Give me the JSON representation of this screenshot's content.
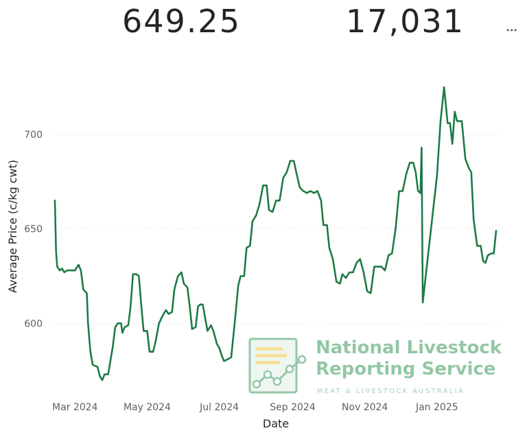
{
  "kpis": [
    {
      "value": "649.25"
    },
    {
      "value": "17,031"
    }
  ],
  "more_options_icon": "ellipsis-icon",
  "colors": {
    "line": "#1e7a45",
    "grid": "#d9d9d9",
    "text": "#605e5c",
    "watermark": "#3c9a5c"
  },
  "watermark": {
    "title_line1": "National Livestock",
    "title_line2": "Reporting Service",
    "subtitle": "MEAT & LIVESTOCK AUSTRALIA",
    "logo": "nlrs-logo"
  },
  "chart_data": {
    "type": "line",
    "xlabel": "Date",
    "ylabel": "Average Price (c/kg cwt)",
    "ylim": [
      566,
      733
    ],
    "yticks": [
      600,
      650,
      700
    ],
    "xticks": [
      {
        "label": "Mar 2024",
        "date": "2024-03-01"
      },
      {
        "label": "May 2024",
        "date": "2024-05-01"
      },
      {
        "label": "Jul 2024",
        "date": "2024-07-01"
      },
      {
        "label": "Sep 2024",
        "date": "2024-09-01"
      },
      {
        "label": "Nov 2024",
        "date": "2024-11-01"
      },
      {
        "label": "Jan 2025",
        "date": "2025-01-01"
      }
    ],
    "xrange": [
      "2024-02-13",
      "2025-02-20"
    ],
    "grid": true,
    "series": [
      {
        "points": [
          [
            "2024-02-13",
            665
          ],
          [
            "2024-02-14",
            638
          ],
          [
            "2024-02-15",
            630
          ],
          [
            "2024-02-17",
            628
          ],
          [
            "2024-02-19",
            629
          ],
          [
            "2024-02-21",
            627
          ],
          [
            "2024-02-23",
            628
          ],
          [
            "2024-02-26",
            628
          ],
          [
            "2024-02-28",
            628
          ],
          [
            "2024-03-01",
            628
          ],
          [
            "2024-03-04",
            631
          ],
          [
            "2024-03-06",
            628
          ],
          [
            "2024-03-08",
            618
          ],
          [
            "2024-03-11",
            616
          ],
          [
            "2024-03-12",
            600
          ],
          [
            "2024-03-14",
            585
          ],
          [
            "2024-03-16",
            578
          ],
          [
            "2024-03-20",
            577
          ],
          [
            "2024-03-22",
            572
          ],
          [
            "2024-03-24",
            570
          ],
          [
            "2024-03-26",
            573
          ],
          [
            "2024-03-29",
            573
          ],
          [
            "2024-04-02",
            588
          ],
          [
            "2024-04-04",
            598
          ],
          [
            "2024-04-06",
            600
          ],
          [
            "2024-04-09",
            600
          ],
          [
            "2024-04-10",
            595
          ],
          [
            "2024-04-12",
            598
          ],
          [
            "2024-04-15",
            599
          ],
          [
            "2024-04-17",
            609
          ],
          [
            "2024-04-19",
            626
          ],
          [
            "2024-04-22",
            626
          ],
          [
            "2024-04-24",
            625
          ],
          [
            "2024-04-26",
            610
          ],
          [
            "2024-04-28",
            596
          ],
          [
            "2024-05-01",
            596
          ],
          [
            "2024-05-03",
            585
          ],
          [
            "2024-05-06",
            585
          ],
          [
            "2024-05-08",
            590
          ],
          [
            "2024-05-11",
            600
          ],
          [
            "2024-05-14",
            604
          ],
          [
            "2024-05-17",
            607
          ],
          [
            "2024-05-19",
            605
          ],
          [
            "2024-05-22",
            606
          ],
          [
            "2024-05-24",
            618
          ],
          [
            "2024-05-27",
            625
          ],
          [
            "2024-05-30",
            627
          ],
          [
            "2024-06-01",
            621
          ],
          [
            "2024-06-04",
            619
          ],
          [
            "2024-06-06",
            609
          ],
          [
            "2024-06-08",
            597
          ],
          [
            "2024-06-11",
            598
          ],
          [
            "2024-06-13",
            609
          ],
          [
            "2024-06-15",
            610
          ],
          [
            "2024-06-17",
            610
          ],
          [
            "2024-06-19",
            603
          ],
          [
            "2024-06-21",
            596
          ],
          [
            "2024-06-24",
            599
          ],
          [
            "2024-06-26",
            596
          ],
          [
            "2024-06-29",
            589
          ],
          [
            "2024-07-01",
            587
          ],
          [
            "2024-07-03",
            583
          ],
          [
            "2024-07-05",
            580
          ],
          [
            "2024-07-08",
            581
          ],
          [
            "2024-07-11",
            582
          ],
          [
            "2024-07-14",
            600
          ],
          [
            "2024-07-17",
            620
          ],
          [
            "2024-07-19",
            625
          ],
          [
            "2024-07-22",
            625
          ],
          [
            "2024-07-24",
            640
          ],
          [
            "2024-07-27",
            641
          ],
          [
            "2024-07-29",
            654
          ],
          [
            "2024-08-01",
            657
          ],
          [
            "2024-08-04",
            663
          ],
          [
            "2024-08-07",
            673
          ],
          [
            "2024-08-10",
            673
          ],
          [
            "2024-08-12",
            660
          ],
          [
            "2024-08-15",
            659
          ],
          [
            "2024-08-18",
            665
          ],
          [
            "2024-08-21",
            665
          ],
          [
            "2024-08-24",
            677
          ],
          [
            "2024-08-27",
            680
          ],
          [
            "2024-08-30",
            686
          ],
          [
            "2024-09-02",
            686
          ],
          [
            "2024-09-04",
            680
          ],
          [
            "2024-09-07",
            672
          ],
          [
            "2024-09-10",
            670
          ],
          [
            "2024-09-13",
            669
          ],
          [
            "2024-09-16",
            670
          ],
          [
            "2024-09-19",
            669
          ],
          [
            "2024-09-22",
            670
          ],
          [
            "2024-09-25",
            665
          ],
          [
            "2024-09-27",
            652
          ],
          [
            "2024-09-30",
            652
          ],
          [
            "2024-10-02",
            640
          ],
          [
            "2024-10-05",
            634
          ],
          [
            "2024-10-08",
            622
          ],
          [
            "2024-10-11",
            621
          ],
          [
            "2024-10-13",
            626
          ],
          [
            "2024-10-16",
            624
          ],
          [
            "2024-10-19",
            627
          ],
          [
            "2024-10-22",
            627
          ],
          [
            "2024-10-25",
            632
          ],
          [
            "2024-10-28",
            634
          ],
          [
            "2024-10-31",
            627
          ],
          [
            "2024-11-03",
            617
          ],
          [
            "2024-11-06",
            616
          ],
          [
            "2024-11-09",
            630
          ],
          [
            "2024-11-12",
            630
          ],
          [
            "2024-11-15",
            630
          ],
          [
            "2024-11-18",
            628
          ],
          [
            "2024-11-21",
            636
          ],
          [
            "2024-11-24",
            637
          ],
          [
            "2024-11-27",
            650
          ],
          [
            "2024-11-30",
            670
          ],
          [
            "2024-12-03",
            670
          ],
          [
            "2024-12-06",
            679
          ],
          [
            "2024-12-09",
            685
          ],
          [
            "2024-12-12",
            685
          ],
          [
            "2024-12-14",
            680
          ],
          [
            "2024-12-16",
            670
          ],
          [
            "2024-12-18",
            669
          ],
          [
            "2024-12-19",
            693
          ],
          [
            "2024-12-20",
            611
          ],
          [
            "2024-12-23",
            628
          ],
          [
            "2025-01-01",
            678
          ],
          [
            "2025-01-04",
            707
          ],
          [
            "2025-01-07",
            725
          ],
          [
            "2025-01-10",
            706
          ],
          [
            "2025-01-12",
            706
          ],
          [
            "2025-01-14",
            695
          ],
          [
            "2025-01-16",
            712
          ],
          [
            "2025-01-18",
            707
          ],
          [
            "2025-01-20",
            707
          ],
          [
            "2025-01-22",
            707
          ],
          [
            "2025-01-25",
            687
          ],
          [
            "2025-01-28",
            682
          ],
          [
            "2025-01-30",
            680
          ],
          [
            "2025-02-01",
            655
          ],
          [
            "2025-02-04",
            641
          ],
          [
            "2025-02-07",
            641
          ],
          [
            "2025-02-09",
            633
          ],
          [
            "2025-02-11",
            632
          ],
          [
            "2025-02-13",
            636
          ],
          [
            "2025-02-16",
            637
          ],
          [
            "2025-02-18",
            637
          ],
          [
            "2025-02-20",
            649
          ]
        ]
      }
    ]
  }
}
